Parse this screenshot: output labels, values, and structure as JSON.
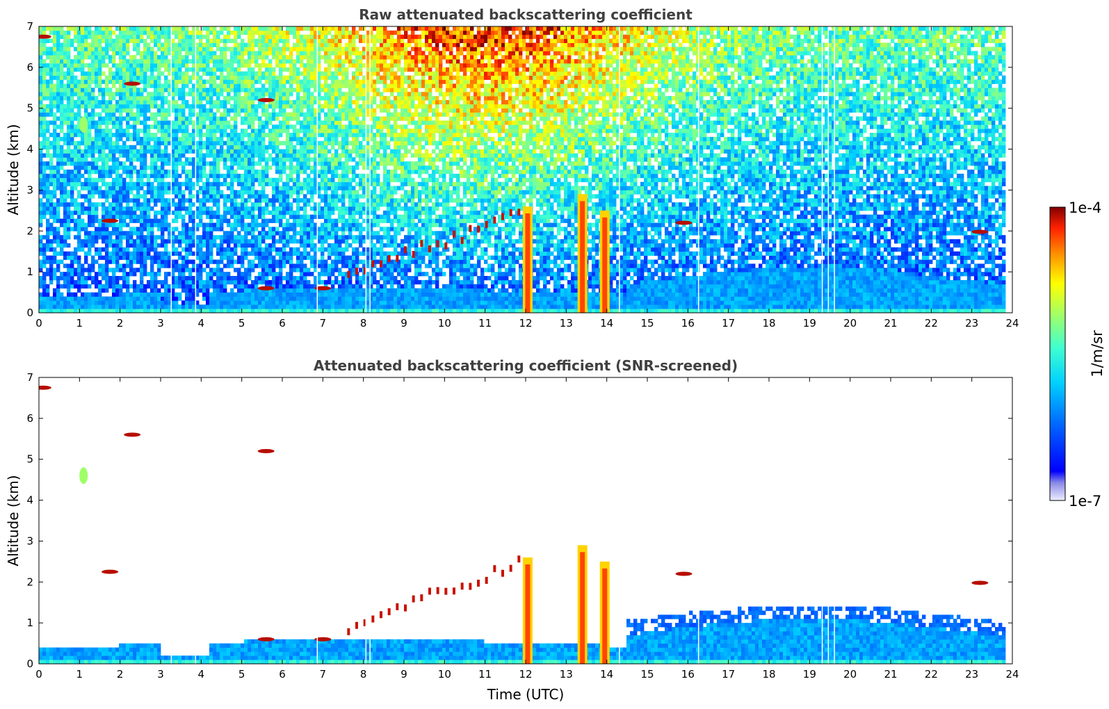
{
  "chart_data": [
    {
      "type": "heatmap",
      "title": "Raw attenuated backscattering coefficient",
      "xlabel": "",
      "ylabel": "Altitude (km)",
      "xlim": [
        0,
        24
      ],
      "ylim": [
        0,
        7
      ],
      "xticks": [
        "0",
        "1",
        "2",
        "3",
        "4",
        "5",
        "6",
        "7",
        "8",
        "9",
        "10",
        "11",
        "12",
        "13",
        "14",
        "15",
        "16",
        "17",
        "18",
        "19",
        "20",
        "21",
        "22",
        "23",
        "24"
      ],
      "yticks": [
        "0",
        "1",
        "2",
        "3",
        "4",
        "5",
        "6",
        "7"
      ],
      "noise_regime": "noisy",
      "features": [
        {
          "name": "boundary layer",
          "x_range": [
            0,
            23.8
          ],
          "top_km": 0.5
        },
        {
          "name": "cloud",
          "x": 0.1,
          "alt_km": 6.75
        },
        {
          "name": "elevated aerosol",
          "x": 1.1,
          "alt_km": 4.6
        },
        {
          "name": "cloud",
          "x": 1.75,
          "alt_km": 2.25
        },
        {
          "name": "cloud",
          "x": 2.3,
          "alt_km": 5.6
        },
        {
          "name": "cloud",
          "x": 5.6,
          "alt_km": 5.2
        },
        {
          "name": "cloud",
          "x": 5.6,
          "alt_km": 0.6
        },
        {
          "name": "cloud",
          "x": 7.0,
          "alt_km": 0.6
        },
        {
          "name": "rising clouds",
          "x_range": [
            7.6,
            11.8
          ],
          "alt_range_km": [
            1.0,
            2.5
          ]
        },
        {
          "name": "precipitation",
          "x": 12.05,
          "alt_range_km": [
            0,
            2.6
          ]
        },
        {
          "name": "precipitation",
          "x": 13.4,
          "alt_range_km": [
            0,
            2.9
          ]
        },
        {
          "name": "precipitation",
          "x": 13.95,
          "alt_range_km": [
            0,
            2.5
          ]
        },
        {
          "name": "cloud",
          "x": 15.9,
          "alt_km": 2.2
        },
        {
          "name": "cloud",
          "x": 23.2,
          "alt_km": 1.98
        }
      ]
    },
    {
      "type": "heatmap",
      "title": "Attenuated backscattering coefficient (SNR-screened)",
      "xlabel": "Time (UTC)",
      "ylabel": "Altitude (km)",
      "xlim": [
        0,
        24
      ],
      "ylim": [
        0,
        7
      ],
      "xticks": [
        "0",
        "1",
        "2",
        "3",
        "4",
        "5",
        "6",
        "7",
        "8",
        "9",
        "10",
        "11",
        "12",
        "13",
        "14",
        "15",
        "16",
        "17",
        "18",
        "19",
        "20",
        "21",
        "22",
        "23",
        "24"
      ],
      "yticks": [
        "0",
        "1",
        "2",
        "3",
        "4",
        "5",
        "6",
        "7"
      ],
      "noise_regime": "screened",
      "colorbar": {
        "label": "1/m/sr",
        "max_label": "1e-4",
        "min_label": "1e-7",
        "scale": "log",
        "colormap": "jet"
      }
    }
  ],
  "colors": {
    "axis": "#000000",
    "title": "#404040",
    "noise_hi": "#ff6000",
    "noise_lo": "#1040ff"
  }
}
